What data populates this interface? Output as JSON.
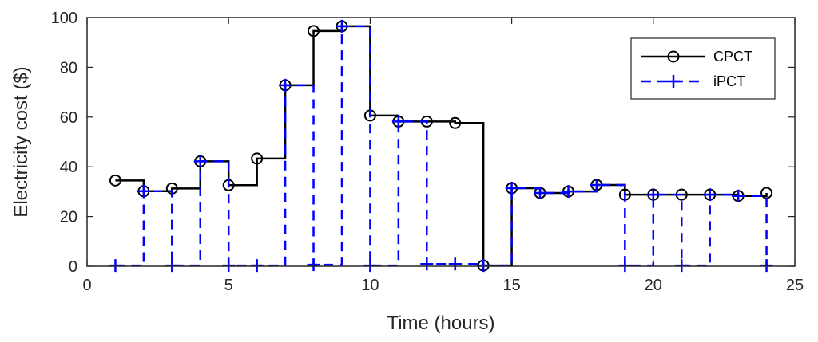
{
  "chart_data": {
    "type": "line",
    "step": "post",
    "xlabel": "Time (hours)",
    "ylabel": "Electricity cost ($)",
    "xlim": [
      0,
      25
    ],
    "ylim": [
      0,
      100
    ],
    "xticks": [
      0,
      5,
      10,
      15,
      20,
      25
    ],
    "yticks": [
      0,
      20,
      40,
      60,
      80,
      100
    ],
    "grid": false,
    "legend": "top-right",
    "x": [
      1,
      2,
      3,
      4,
      5,
      6,
      7,
      8,
      9,
      10,
      11,
      12,
      13,
      14,
      15,
      16,
      17,
      18,
      19,
      20,
      21,
      22,
      23,
      24
    ],
    "series": [
      {
        "name": "CPCT",
        "color": "#000000",
        "line": "solid",
        "marker": "circle",
        "values": [
          34.5,
          30.2,
          31.3,
          42.2,
          32.6,
          43.3,
          72.8,
          94.6,
          96.5,
          60.6,
          58.2,
          58.2,
          57.6,
          0.3,
          31.4,
          29.5,
          30.1,
          32.7,
          28.8,
          28.8,
          28.8,
          28.8,
          28.3,
          29.5
        ]
      },
      {
        "name": "iPCT",
        "color": "#0000ff",
        "line": "dashed",
        "marker": "plus",
        "values": [
          0.3,
          30.2,
          0.3,
          42.2,
          0.3,
          0.3,
          72.8,
          0.6,
          96.5,
          0.3,
          58.2,
          0.9,
          0.9,
          0.3,
          31.4,
          29.5,
          30.1,
          32.7,
          0.3,
          28.8,
          0.3,
          28.8,
          28.3,
          0.3
        ]
      }
    ]
  }
}
